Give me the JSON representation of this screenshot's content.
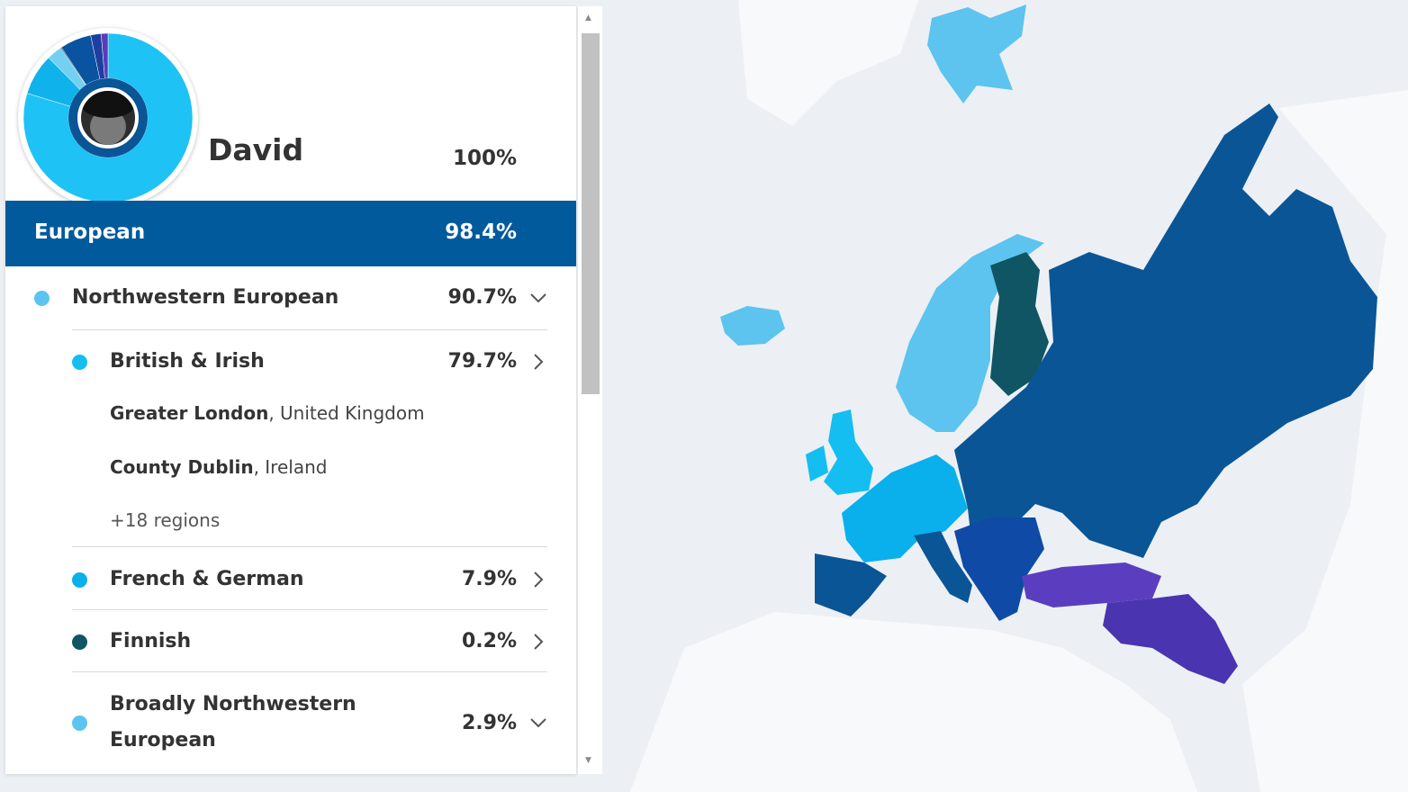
{
  "profile": {
    "name": "David",
    "total": "100%"
  },
  "european": {
    "label": "European",
    "percent": "98.4%"
  },
  "northwestern": {
    "label": "Northwestern European",
    "percent": "90.7%",
    "dot_color": "#5cc4ef"
  },
  "british_irish": {
    "label": "British & Irish",
    "percent": "79.7%",
    "dot_color": "#14bef0",
    "regions": [
      {
        "bold": "Greater London",
        "rest": ", United Kingdom"
      },
      {
        "bold": "County Dublin",
        "rest": ", Ireland"
      }
    ],
    "more": "+18 regions"
  },
  "french_german": {
    "label": "French & German",
    "percent": "7.9%",
    "dot_color": "#0ab0ec"
  },
  "finnish": {
    "label": "Finnish",
    "percent": "0.2%",
    "dot_color": "#0f5563"
  },
  "broadly_nw": {
    "label_line1": "Broadly Northwestern",
    "label_line2": "European",
    "percent": "2.9%",
    "dot_color": "#5cc4ef"
  },
  "donut_segments": [
    {
      "color": "#1ec2f5",
      "percent": 79.7
    },
    {
      "color": "#10b2ec",
      "percent": 7.9
    },
    {
      "color": "#74d0f1",
      "percent": 2.9
    },
    {
      "color": "#0f5563",
      "percent": 0.2
    },
    {
      "color": "#0a53a0",
      "percent": 6.0
    },
    {
      "color": "#1d3fa0",
      "percent": 2.0
    },
    {
      "color": "#5a3bb8",
      "percent": 1.3
    }
  ],
  "colors": {
    "accent": "#005a9c",
    "map_bg": "#ecf0f4",
    "map_land": "#f8f9fb",
    "light_blue": "#5cc4ef",
    "finland": "#0f5563",
    "russia": "#0a5596",
    "balkans": "#0e4aa6",
    "mideast": "#5b3ec0"
  }
}
